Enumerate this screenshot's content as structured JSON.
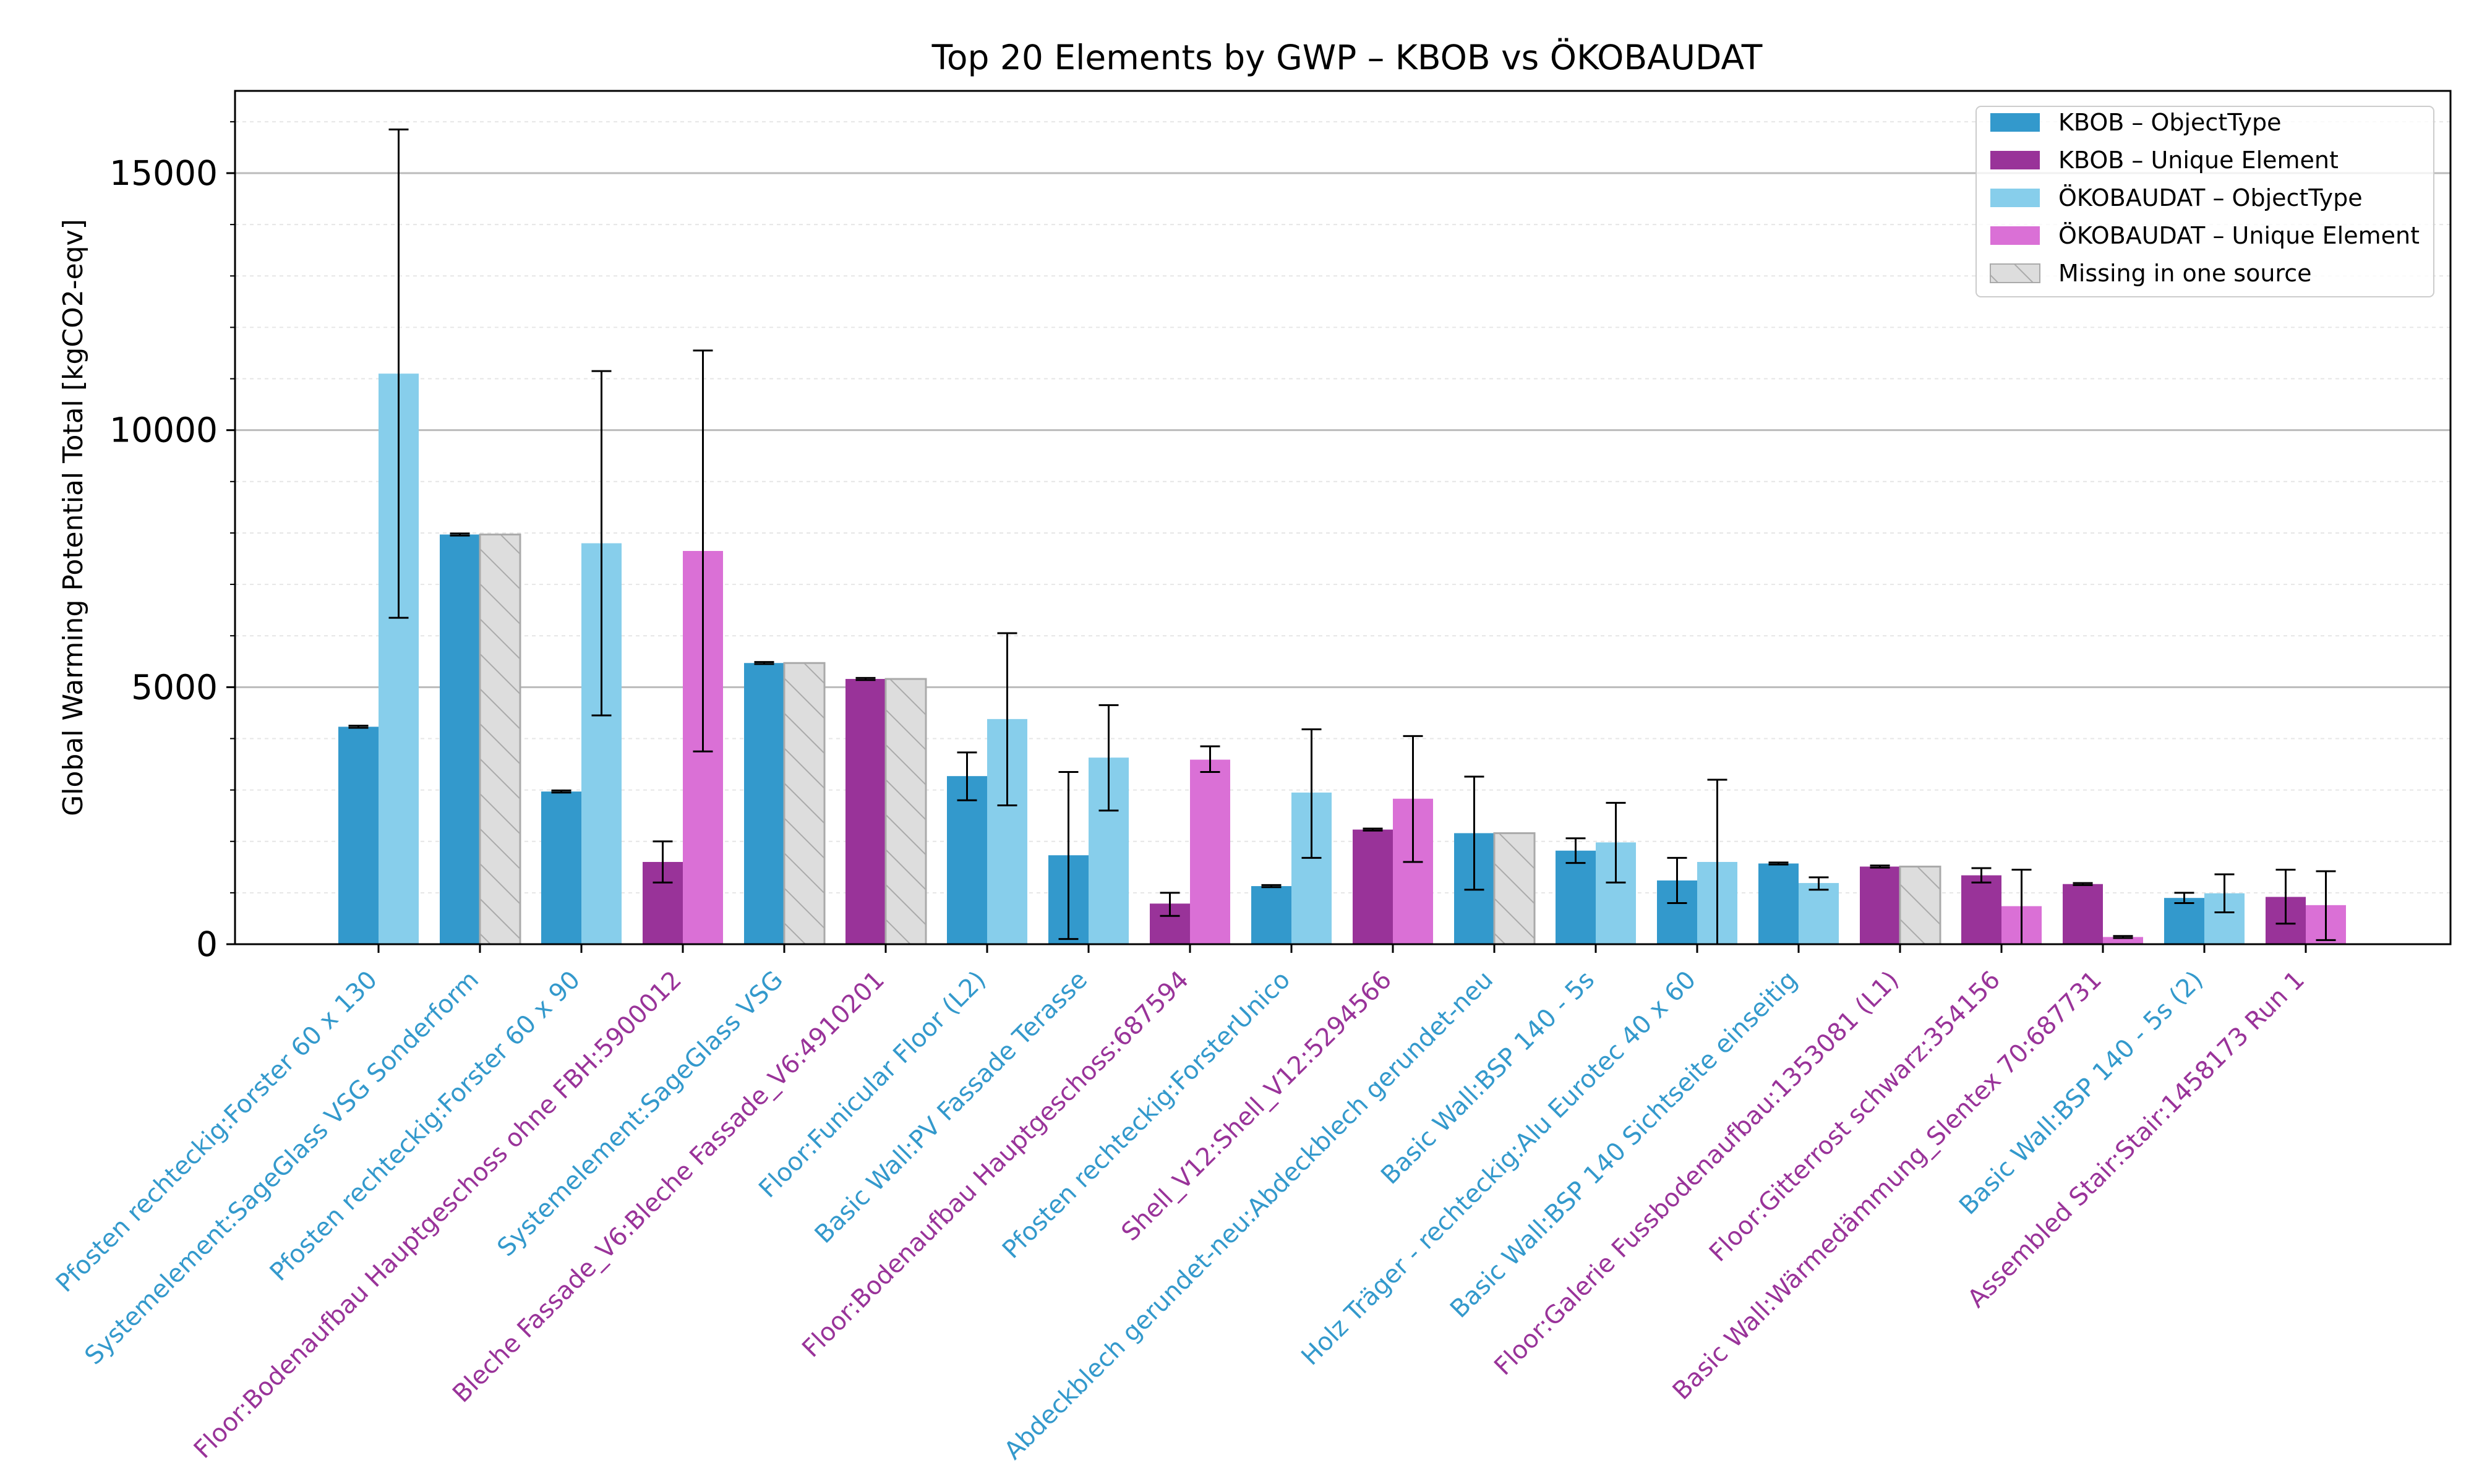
{
  "colors": {
    "kbob_objecttype": "#3399cc",
    "kbob_unique": "#993399",
    "okobaudat_objecttype": "#87ceeb",
    "okobaudat_unique": "#da70d6",
    "missing": "#dddddd",
    "label_objecttype": "#3399cc",
    "label_unique": "#993399"
  },
  "chart_data": {
    "type": "bar",
    "title": "Top 20 Elements by GWP – KBOB vs ÖKOBAUDAT",
    "xlabel": "",
    "ylabel": "Global Warming Potential Total [kgCO2-eqv]",
    "ylim": [
      0,
      16600
    ],
    "yticks": [
      0,
      5000,
      10000,
      15000
    ],
    "grid": "horizontal major and minor",
    "legend_position": "top-right",
    "legend": [
      {
        "label": "KBOB – ObjectType",
        "kind": "kbob_objecttype"
      },
      {
        "label": "KBOB – Unique Element",
        "kind": "kbob_unique"
      },
      {
        "label": "ÖKOBAUDAT – ObjectType",
        "kind": "okobaudat_objecttype"
      },
      {
        "label": "ÖKOBAUDAT – Unique Element",
        "kind": "okobaudat_unique"
      },
      {
        "label": "Missing in one source",
        "kind": "missing"
      }
    ],
    "categories": [
      {
        "label": "Pfosten rechteckig:Forster 60 x 130",
        "kind": "ObjectType",
        "kbob": 4230,
        "kbob_err": [
          4210,
          4250
        ],
        "oko": 11100,
        "oko_err": [
          6350,
          15850
        ],
        "missing": null
      },
      {
        "label": "Systemelement:SageGlass VSG Sonderform",
        "kind": "ObjectType",
        "kbob": 7970,
        "kbob_err": [
          7950,
          7990
        ],
        "oko": null,
        "oko_err": null,
        "missing": "oko"
      },
      {
        "label": "Pfosten rechteckig:Forster 60 x 90",
        "kind": "ObjectType",
        "kbob": 2970,
        "kbob_err": [
          2950,
          2990
        ],
        "oko": 7800,
        "oko_err": [
          4450,
          11150
        ],
        "missing": null
      },
      {
        "label": "Floor:Bodenaufbau Hauptgeschoss ohne FBH:5900012",
        "kind": "Unique",
        "kbob": 1600,
        "kbob_err": [
          1200,
          2000
        ],
        "oko": 7650,
        "oko_err": [
          3750,
          11550
        ],
        "missing": null
      },
      {
        "label": "Systemelement:SageGlass VSG",
        "kind": "ObjectType",
        "kbob": 5470,
        "kbob_err": [
          5450,
          5490
        ],
        "oko": null,
        "oko_err": null,
        "missing": "oko"
      },
      {
        "label": "Bleche Fassade_V6:Bleche Fassade_V6:4910201",
        "kind": "Unique",
        "kbob": 5160,
        "kbob_err": [
          5140,
          5180
        ],
        "oko": null,
        "oko_err": null,
        "missing": "oko"
      },
      {
        "label": "Floor:Funicular Floor (L2)",
        "kind": "ObjectType",
        "kbob": 3270,
        "kbob_err": [
          2800,
          3730
        ],
        "oko": 4380,
        "oko_err": [
          2700,
          6050
        ],
        "missing": null
      },
      {
        "label": "Basic Wall:PV Fassade Terasse",
        "kind": "ObjectType",
        "kbob": 1730,
        "kbob_err": [
          100,
          3350
        ],
        "oko": 3630,
        "oko_err": [
          2600,
          4650
        ],
        "missing": null
      },
      {
        "label": "Floor:Bodenaufbau Hauptgeschoss:687594",
        "kind": "Unique",
        "kbob": 790,
        "kbob_err": [
          550,
          1000
        ],
        "oko": 3590,
        "oko_err": [
          3350,
          3850
        ],
        "missing": null
      },
      {
        "label": "Pfosten rechteckig:ForsterUnico",
        "kind": "ObjectType",
        "kbob": 1130,
        "kbob_err": [
          1110,
          1150
        ],
        "oko": 2950,
        "oko_err": [
          1680,
          4180
        ],
        "missing": null
      },
      {
        "label": "Shell_V12:Shell_V12:5294566",
        "kind": "Unique",
        "kbob": 2230,
        "kbob_err": [
          2210,
          2250
        ],
        "oko": 2830,
        "oko_err": [
          1600,
          4050
        ],
        "missing": null
      },
      {
        "label": "Abdeckblech gerundet-neu:Abdeckblech gerundet-neu",
        "kind": "ObjectType",
        "kbob": 2160,
        "kbob_err": [
          1060,
          3260
        ],
        "oko": null,
        "oko_err": null,
        "missing": "oko"
      },
      {
        "label": "Basic Wall:BSP 140 - 5s",
        "kind": "ObjectType",
        "kbob": 1820,
        "kbob_err": [
          1580,
          2060
        ],
        "oko": 1980,
        "oko_err": [
          1200,
          2750
        ],
        "missing": null
      },
      {
        "label": "Holz Träger - rechteckig:Alu Eurotec 40 x 60",
        "kind": "ObjectType",
        "kbob": 1240,
        "kbob_err": [
          800,
          1680
        ],
        "oko": 1600,
        "oko_err": [
          0,
          3200
        ],
        "missing": null
      },
      {
        "label": "Basic Wall:BSP 140 Sichtseite einseitig",
        "kind": "ObjectType",
        "kbob": 1570,
        "kbob_err": [
          1550,
          1590
        ],
        "oko": 1190,
        "oko_err": [
          1060,
          1300
        ],
        "missing": null
      },
      {
        "label": "Floor:Galerie Fussbodenaufbau:1353081 (L1)",
        "kind": "Unique",
        "kbob": 1510,
        "kbob_err": [
          1490,
          1530
        ],
        "oko": null,
        "oko_err": null,
        "missing": "oko"
      },
      {
        "label": "Floor:Gitterrost schwarz:354156",
        "kind": "Unique",
        "kbob": 1340,
        "kbob_err": [
          1200,
          1480
        ],
        "oko": 740,
        "oko_err": [
          0,
          1450
        ],
        "missing": null
      },
      {
        "label": "Basic Wall:Wärmedämmung_Slentex 70:687731",
        "kind": "Unique",
        "kbob": 1170,
        "kbob_err": [
          1150,
          1190
        ],
        "oko": 140,
        "oko_err": [
          120,
          160
        ],
        "missing": null
      },
      {
        "label": "Basic Wall:BSP 140 - 5s (2)",
        "kind": "ObjectType",
        "kbob": 900,
        "kbob_err": [
          800,
          1000
        ],
        "oko": 990,
        "oko_err": [
          620,
          1360
        ],
        "missing": null
      },
      {
        "label": "Assembled Stair:Stair:1458173 Run 1",
        "kind": "Unique",
        "kbob": 920,
        "kbob_err": [
          400,
          1450
        ],
        "oko": 760,
        "oko_err": [
          80,
          1420
        ],
        "missing": null
      }
    ]
  }
}
